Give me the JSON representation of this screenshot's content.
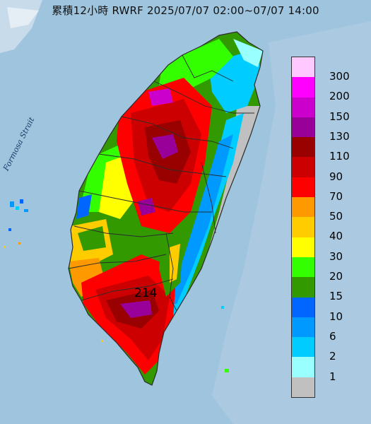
{
  "title": "累積12小時 RWRF 2025/07/07 02:00~07/07 14:00",
  "strait_label": "Formosa Strait",
  "max_value": "214",
  "colors": {
    "sea": "#9fc4de",
    "terrain": "#c6d9e8",
    "no_rain": "#bdbdbd",
    "county_line": "#2b2b2b"
  },
  "legend": [
    {
      "label": "300",
      "color": "#ffc8ff"
    },
    {
      "label": "200",
      "color": "#ff00ff"
    },
    {
      "label": "150",
      "color": "#cc00cc"
    },
    {
      "label": "130",
      "color": "#990099"
    },
    {
      "label": "110",
      "color": "#990000"
    },
    {
      "label": "90",
      "color": "#cc0000"
    },
    {
      "label": "70",
      "color": "#ff0000"
    },
    {
      "label": "50",
      "color": "#ff9900"
    },
    {
      "label": "40",
      "color": "#ffcc00"
    },
    {
      "label": "30",
      "color": "#ffff00"
    },
    {
      "label": "20",
      "color": "#33ff00"
    },
    {
      "label": "15",
      "color": "#339900"
    },
    {
      "label": "10",
      "color": "#0066ff"
    },
    {
      "label": "6",
      "color": "#0099ff"
    },
    {
      "label": "2",
      "color": "#00ccff"
    },
    {
      "label": "1",
      "color": "#99ffff"
    },
    {
      "label": "",
      "color": "#c0c0c0"
    }
  ]
}
